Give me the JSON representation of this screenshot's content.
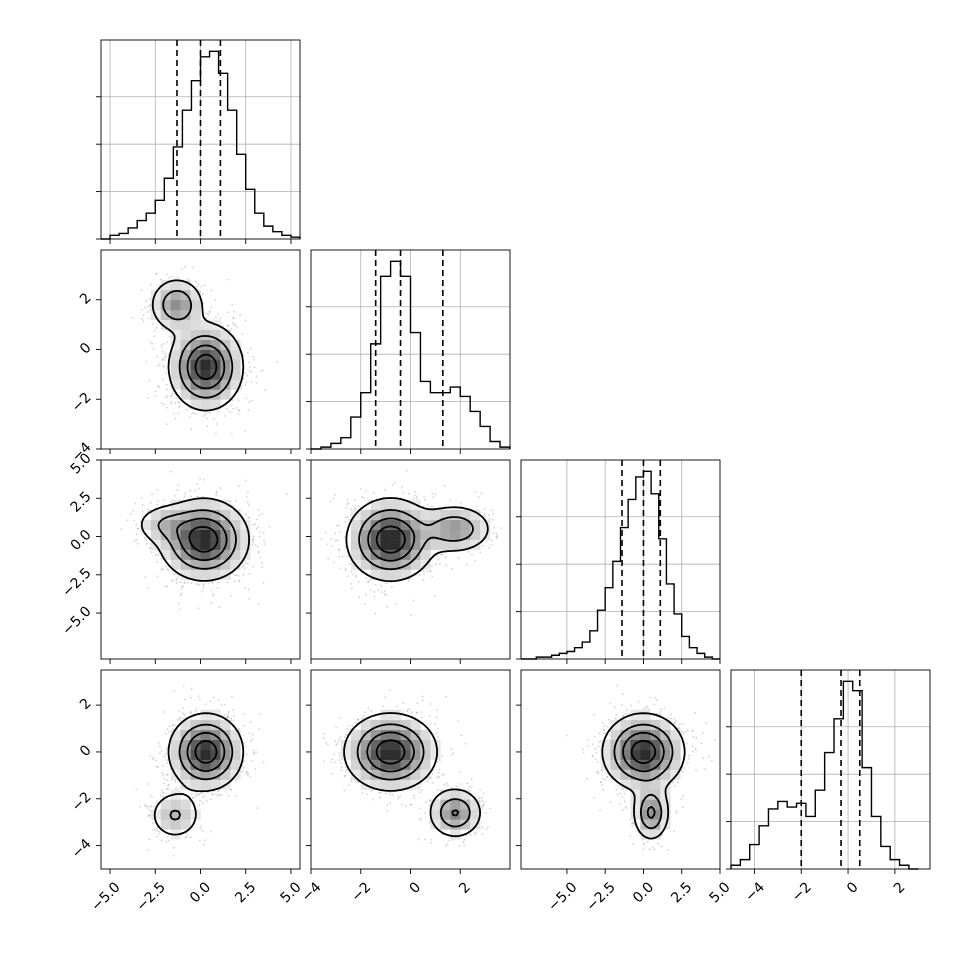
{
  "chart_data": {
    "type": "corner",
    "n_params": 4,
    "layout": "lower-triangle",
    "grid": true,
    "params": [
      {
        "xlim": [
          -5.5,
          5.5
        ],
        "xticks": [
          -5.0,
          -2.5,
          0.0,
          2.5,
          5.0
        ],
        "xtick_labels": [
          "−5.0",
          "−2.5",
          "0.0",
          "2.5",
          "5.0"
        ],
        "quantiles": [
          -1.3,
          0.0,
          1.1
        ],
        "hist": {
          "edges": [
            -5.5,
            -5,
            -4.5,
            -4,
            -3.5,
            -3,
            -2.5,
            -2,
            -1.5,
            -1,
            -0.5,
            0,
            0.5,
            1,
            1.5,
            2,
            2.5,
            3,
            3.5,
            4,
            4.5,
            5,
            5.5
          ],
          "counts": [
            0.0,
            0.02,
            0.03,
            0.06,
            0.1,
            0.14,
            0.21,
            0.33,
            0.5,
            0.7,
            0.86,
            0.99,
            1.02,
            0.9,
            0.7,
            0.46,
            0.27,
            0.14,
            0.07,
            0.04,
            0.02,
            0.01
          ]
        }
      },
      {
        "xlim": [
          -4,
          4
        ],
        "xticks": [
          -4,
          -2,
          0,
          2
        ],
        "xtick_labels": [
          "−4",
          "−2",
          "0",
          "2"
        ],
        "yticks": [
          -4,
          -2,
          0,
          2
        ],
        "ytick_labels": [
          "−4",
          "−2",
          "0",
          "2"
        ],
        "quantiles": [
          -1.4,
          -0.4,
          1.3
        ],
        "hist": {
          "edges": [
            -4,
            -3.6,
            -3.2,
            -2.8,
            -2.4,
            -2,
            -1.6,
            -1.2,
            -0.8,
            -0.4,
            0,
            0.4,
            0.8,
            1.2,
            1.6,
            2,
            2.4,
            2.8,
            3.2,
            3.6,
            4
          ],
          "counts": [
            0.0,
            0.01,
            0.03,
            0.06,
            0.17,
            0.3,
            0.56,
            0.92,
            1.0,
            0.92,
            0.62,
            0.36,
            0.3,
            0.3,
            0.33,
            0.28,
            0.2,
            0.12,
            0.04,
            0.01
          ]
        }
      },
      {
        "xlim": [
          -8,
          5
        ],
        "xticks": [
          -5.0,
          -2.5,
          0.0,
          2.5,
          5.0
        ],
        "xtick_labels": [
          "−5.0",
          "−2.5",
          "0.0",
          "2.5",
          "5.0"
        ],
        "yticks": [
          -5.0,
          -2.5,
          0.0,
          2.5,
          5.0
        ],
        "ytick_labels": [
          "−5.0",
          "−2.5",
          "0.0",
          "2.5",
          "5.0"
        ],
        "quantiles": [
          -1.4,
          0.0,
          1.1
        ],
        "hist": {
          "edges": [
            -8,
            -7.5,
            -7,
            -6.5,
            -6,
            -5.5,
            -5,
            -4.5,
            -4,
            -3.5,
            -3,
            -2.5,
            -2,
            -1.5,
            -1,
            -0.5,
            0,
            0.5,
            1,
            1.5,
            2,
            2.5,
            3,
            3.5,
            4,
            4.5,
            5
          ],
          "counts": [
            0.0,
            0.0,
            0.01,
            0.01,
            0.02,
            0.03,
            0.04,
            0.06,
            0.09,
            0.15,
            0.26,
            0.38,
            0.52,
            0.7,
            0.85,
            0.97,
            1.0,
            0.88,
            0.64,
            0.4,
            0.24,
            0.12,
            0.06,
            0.03,
            0.01,
            0.0
          ]
        }
      },
      {
        "xlim": [
          -5,
          3.5
        ],
        "xticks": [
          -4,
          -2,
          0,
          2
        ],
        "xtick_labels": [
          "−4",
          "−2",
          "0",
          "2"
        ],
        "yticks": [
          -4,
          -2,
          0,
          2
        ],
        "ytick_labels": [
          "−4",
          "−2",
          "0",
          "2"
        ],
        "quantiles": [
          -2.0,
          -0.3,
          0.5
        ],
        "hist": {
          "edges": [
            -5,
            -4.6,
            -4.2,
            -3.8,
            -3.4,
            -3,
            -2.6,
            -2.2,
            -1.8,
            -1.4,
            -1,
            -0.6,
            -0.2,
            0.2,
            0.6,
            1,
            1.4,
            1.8,
            2.2,
            2.6,
            3
          ],
          "counts": [
            0.02,
            0.05,
            0.13,
            0.23,
            0.32,
            0.36,
            0.33,
            0.35,
            0.28,
            0.42,
            0.62,
            0.8,
            1.0,
            0.95,
            0.54,
            0.28,
            0.12,
            0.05,
            0.02,
            0.0
          ]
        }
      }
    ],
    "pairs": [
      {
        "x": 0,
        "y": 1,
        "modes": [
          {
            "cx": 0.3,
            "cy": -0.7,
            "sx": 1.0,
            "sy": 0.85,
            "w": 0.78
          },
          {
            "cx": -1.3,
            "cy": 1.8,
            "sx": 0.75,
            "sy": 0.55,
            "w": 0.22
          }
        ]
      },
      {
        "x": 0,
        "y": 2,
        "modes": [
          {
            "cx": 0.2,
            "cy": -0.2,
            "sx": 1.2,
            "sy": 1.3,
            "w": 0.9
          },
          {
            "cx": -2.0,
            "cy": 0.8,
            "sx": 0.9,
            "sy": 0.7,
            "w": 0.1
          }
        ]
      },
      {
        "x": 1,
        "y": 2,
        "modes": [
          {
            "cx": -0.8,
            "cy": -0.2,
            "sx": 0.85,
            "sy": 1.3,
            "w": 0.78
          },
          {
            "cx": 1.8,
            "cy": 0.5,
            "sx": 0.75,
            "sy": 0.8,
            "w": 0.22
          }
        ]
      },
      {
        "x": 0,
        "y": 3,
        "modes": [
          {
            "cx": 0.3,
            "cy": 0.0,
            "sx": 1.0,
            "sy": 0.8,
            "w": 0.84
          },
          {
            "cx": -1.4,
            "cy": -2.7,
            "sx": 0.75,
            "sy": 0.55,
            "w": 0.16
          }
        ]
      },
      {
        "x": 1,
        "y": 3,
        "modes": [
          {
            "cx": -0.8,
            "cy": 0.0,
            "sx": 0.9,
            "sy": 0.8,
            "w": 0.8
          },
          {
            "cx": 1.8,
            "cy": -2.6,
            "sx": 0.55,
            "sy": 0.55,
            "w": 0.2
          }
        ]
      },
      {
        "x": 2,
        "y": 3,
        "modes": [
          {
            "cx": 0.0,
            "cy": 0.0,
            "sx": 1.3,
            "sy": 0.8,
            "w": 0.82
          },
          {
            "cx": 0.5,
            "cy": -2.6,
            "sx": 0.6,
            "sy": 0.6,
            "w": 0.18
          }
        ]
      }
    ],
    "contour_levels": [
      0.12,
      0.35,
      0.6,
      0.85
    ],
    "colors": {
      "line": "#000000",
      "grid": "#b0b0b0",
      "scatter": "#7f7f7f"
    }
  }
}
